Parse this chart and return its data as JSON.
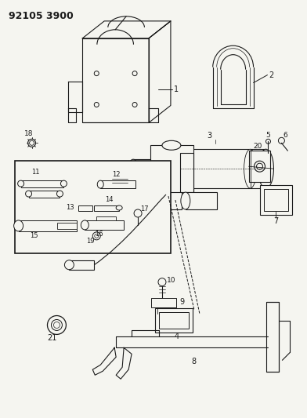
{
  "title": "92105 3900",
  "background_color": "#f5f5f0",
  "line_color": "#1a1a1a",
  "figure_width": 3.92,
  "figure_height": 5.33,
  "dpi": 100
}
